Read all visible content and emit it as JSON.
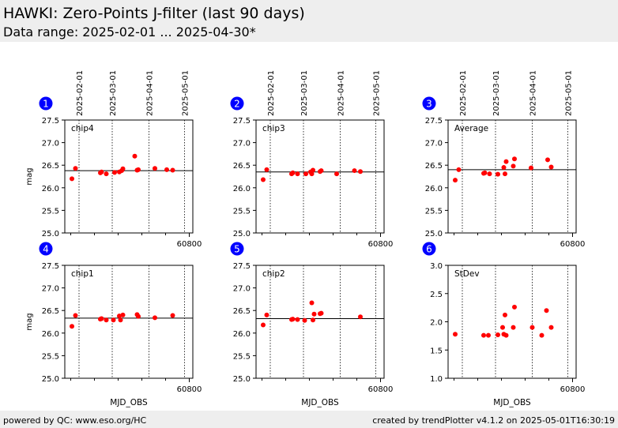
{
  "header": {
    "title": "HAWKI: Zero-Points J-filter (last 90 days)",
    "subtitle": "Data range: 2025-02-01 ... 2025-04-30*"
  },
  "footer": {
    "left": "powered by QC: www.eso.org/HC",
    "right": "created by trendPlotter v4.1.2 on 2025-05-01T16:30:19"
  },
  "colors": {
    "points": "#ff0000",
    "badge": "#0000ff",
    "header_bg": "#eeeeee"
  },
  "chart_data": [
    {
      "type": "scatter",
      "panel": "1",
      "label": "chip4",
      "ylabel": "mag",
      "xlabel": "",
      "xlim": [
        60695,
        60803
      ],
      "ylim": [
        25.0,
        27.5
      ],
      "yticks": [
        "25.0",
        "25.5",
        "26.0",
        "26.5",
        "27.0",
        "27.5"
      ],
      "xtick_labels": [
        "60800"
      ],
      "ref_line": 26.38,
      "grid": "dotted date lines",
      "x": [
        60701,
        60704,
        60725,
        60726,
        60730,
        60737,
        60741,
        60743,
        60744,
        60754,
        60756,
        60757,
        60771,
        60781,
        60786
      ],
      "y": [
        26.2,
        26.43,
        26.33,
        26.35,
        26.31,
        26.34,
        26.35,
        26.38,
        26.42,
        26.7,
        26.39,
        26.4,
        26.43,
        26.4,
        26.39
      ]
    },
    {
      "type": "scatter",
      "panel": "2",
      "label": "chip3",
      "ylabel": "",
      "xlabel": "",
      "xlim": [
        60695,
        60803
      ],
      "ylim": [
        25.0,
        27.5
      ],
      "yticks": [
        "25.0",
        "25.5",
        "26.0",
        "26.5",
        "27.0",
        "27.5"
      ],
      "xtick_labels": [
        "60800"
      ],
      "ref_line": 26.35,
      "grid": "dotted date lines",
      "x": [
        60701,
        60704,
        60725,
        60726,
        60730,
        60737,
        60741,
        60742,
        60743,
        60749,
        60750,
        60763,
        60778,
        60783
      ],
      "y": [
        26.18,
        26.4,
        26.31,
        26.33,
        26.31,
        26.31,
        26.35,
        26.31,
        26.39,
        26.36,
        26.38,
        26.31,
        26.38,
        26.36
      ]
    },
    {
      "type": "scatter",
      "panel": "3",
      "label": "Average",
      "ylabel": "",
      "xlabel": "",
      "xlim": [
        60695,
        60803
      ],
      "ylim": [
        25.0,
        27.5
      ],
      "yticks": [
        "25.0",
        "25.5",
        "26.0",
        "26.5",
        "27.0",
        "27.5"
      ],
      "xtick_labels": [
        "60800"
      ],
      "ref_line": 26.4,
      "grid": "dotted date lines",
      "x": [
        60701,
        60704,
        60725,
        60726,
        60730,
        60737,
        60742,
        60743,
        60744,
        60750,
        60751,
        60765,
        60779,
        60782
      ],
      "y": [
        26.17,
        26.4,
        26.32,
        26.33,
        26.31,
        26.3,
        26.45,
        26.31,
        26.58,
        26.48,
        26.64,
        26.44,
        26.62,
        26.46
      ]
    },
    {
      "type": "scatter",
      "panel": "4",
      "label": "chip1",
      "ylabel": "mag",
      "xlabel": "MJD_OBS",
      "xlim": [
        60695,
        60803
      ],
      "ylim": [
        25.0,
        27.5
      ],
      "yticks": [
        "25.0",
        "25.5",
        "26.0",
        "26.5",
        "27.0",
        "27.5"
      ],
      "xtick_labels": [
        "60800"
      ],
      "ref_line": 26.33,
      "grid": "dotted date lines",
      "x": [
        60701,
        60704,
        60725,
        60726,
        60730,
        60736,
        60741,
        60742,
        60744,
        60756,
        60757,
        60771,
        60786
      ],
      "y": [
        26.15,
        26.39,
        26.31,
        26.32,
        26.29,
        26.29,
        26.38,
        26.29,
        26.4,
        26.41,
        26.37,
        26.34,
        26.39
      ]
    },
    {
      "type": "scatter",
      "panel": "5",
      "label": "chip2",
      "ylabel": "",
      "xlabel": "MJD_OBS",
      "xlim": [
        60695,
        60803
      ],
      "ylim": [
        25.0,
        27.5
      ],
      "yticks": [
        "25.0",
        "25.5",
        "26.0",
        "26.5",
        "27.0",
        "27.5"
      ],
      "xtick_labels": [
        "60800"
      ],
      "ref_line": 26.32,
      "grid": "dotted date lines",
      "x": [
        60701,
        60704,
        60725,
        60726,
        60730,
        60736,
        60742,
        60743,
        60744,
        60749,
        60750,
        60783
      ],
      "y": [
        26.18,
        26.4,
        26.3,
        26.31,
        26.3,
        26.28,
        26.67,
        26.29,
        26.42,
        26.43,
        26.44,
        26.36
      ]
    },
    {
      "type": "scatter",
      "panel": "6",
      "label": "StDev",
      "ylabel": "",
      "xlabel": "MJD_OBS",
      "xlim": [
        60695,
        60803
      ],
      "ylim": [
        1.0,
        3.0
      ],
      "yticks": [
        "1.0",
        "1.5",
        "2.0",
        "2.5",
        "3.0"
      ],
      "xtick_labels": [
        "60800"
      ],
      "ref_line": null,
      "grid": "dotted date lines",
      "x": [
        60701,
        60725,
        60729,
        60737,
        60741,
        60742,
        60743,
        60744,
        60750,
        60751,
        60766,
        60774,
        60778,
        60782
      ],
      "y": [
        1.78,
        1.76,
        1.76,
        1.77,
        1.9,
        1.78,
        2.12,
        1.76,
        1.9,
        2.26,
        1.9,
        1.76,
        2.2,
        1.9
      ]
    }
  ],
  "date_markers": {
    "labels": [
      "2025-02-01",
      "2025-03-01",
      "2025-04-01",
      "2025-05-01"
    ],
    "mjd": [
      60707,
      60735,
      60766,
      60796
    ]
  }
}
